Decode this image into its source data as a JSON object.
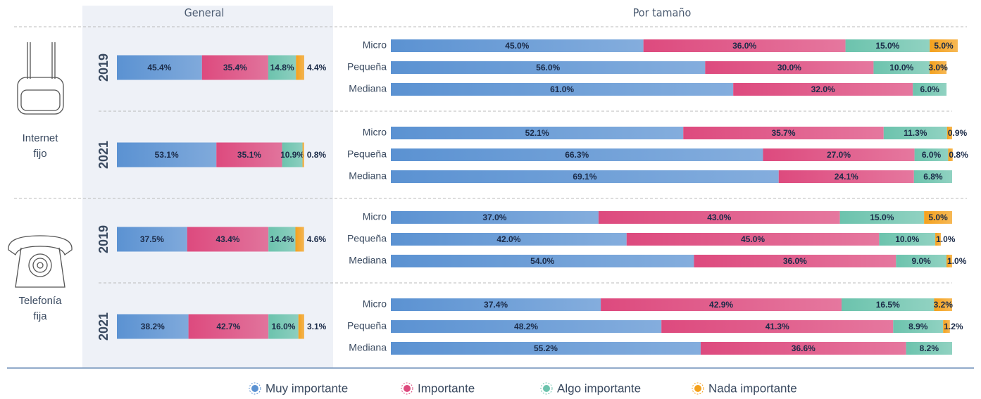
{
  "chart_data": {
    "type": "stacked_bar",
    "headers": [
      "General",
      "Por tamaño"
    ],
    "xlim": [
      0,
      100
    ],
    "series": [
      {
        "name": "Muy importante",
        "color": "#5b92d2"
      },
      {
        "name": "Importante",
        "color": "#dd4a7e"
      },
      {
        "name": "Algo importante",
        "color": "#6cc3ad"
      },
      {
        "name": "Nada importante",
        "color": "#f4a11d"
      }
    ],
    "sections": [
      {
        "label_lines": [
          "Internet",
          "fijo"
        ],
        "years": [
          {
            "year": "2019",
            "general": {
              "values": [
                45.4,
                35.4,
                14.8,
                4.4
              ],
              "value_labels": [
                "45.4%",
                "35.4%",
                "14.8%",
                "4.4%"
              ]
            },
            "sizes": [
              {
                "name": "Micro",
                "values": [
                  45,
                  36,
                  15,
                  5
                ],
                "value_labels": [
                  "45.0%",
                  "36.0%",
                  "15.0%",
                  "5.0%"
                ]
              },
              {
                "name": "Pequeña",
                "values": [
                  56,
                  30,
                  10,
                  3
                ],
                "value_labels": [
                  "56.0%",
                  "30.0%",
                  "10.0%",
                  "3.0%"
                ]
              },
              {
                "name": "Mediana",
                "values": [
                  61,
                  32,
                  6
                ],
                "value_labels": [
                  "61.0%",
                  "32.0%",
                  "6.0%"
                ]
              }
            ]
          },
          {
            "year": "2021",
            "general": {
              "values": [
                53.1,
                35.1,
                10.9,
                0.8
              ],
              "value_labels": [
                "53.1%",
                "35.1%",
                "10.9%",
                "0.8%"
              ]
            },
            "sizes": [
              {
                "name": "Micro",
                "values": [
                  52.1,
                  35.7,
                  11.3,
                  0.9
                ],
                "value_labels": [
                  "52.1%",
                  "35.7%",
                  "11.3%",
                  "0.9%"
                ]
              },
              {
                "name": "Pequeña",
                "values": [
                  66.3,
                  27.0,
                  6.0,
                  0.8
                ],
                "value_labels": [
                  "66.3%",
                  "27.0%",
                  "6.0%",
                  "0.8%"
                ]
              },
              {
                "name": "Mediana",
                "values": [
                  69.1,
                  24.1,
                  6.8
                ],
                "value_labels": [
                  "69.1%",
                  "24.1%",
                  "6.8%"
                ]
              }
            ]
          }
        ]
      },
      {
        "label_lines": [
          "Telefonía",
          "fija"
        ],
        "years": [
          {
            "year": "2019",
            "general": {
              "values": [
                37.5,
                43.4,
                14.4,
                4.6
              ],
              "value_labels": [
                "37.5%",
                "43.4%",
                "14.4%",
                "4.6%"
              ]
            },
            "sizes": [
              {
                "name": "Micro",
                "values": [
                  37,
                  43,
                  15,
                  5
                ],
                "value_labels": [
                  "37.0%",
                  "43.0%",
                  "15.0%",
                  "5.0%"
                ]
              },
              {
                "name": "Pequeña",
                "values": [
                  42,
                  45,
                  10,
                  1
                ],
                "value_labels": [
                  "42.0%",
                  "45.0%",
                  "10.0%",
                  "1.0%"
                ]
              },
              {
                "name": "Mediana",
                "values": [
                  54,
                  36,
                  9,
                  1
                ],
                "value_labels": [
                  "54.0%",
                  "36.0%",
                  "9.0%",
                  "1.0%"
                ]
              }
            ]
          },
          {
            "year": "2021",
            "general": {
              "values": [
                38.2,
                42.7,
                16.0,
                3.1
              ],
              "value_labels": [
                "38.2%",
                "42.7%",
                "16.0%",
                "3.1%"
              ]
            },
            "sizes": [
              {
                "name": "Micro",
                "values": [
                  37.4,
                  42.9,
                  16.5,
                  3.2
                ],
                "value_labels": [
                  "37.4%",
                  "42.9%",
                  "16.5%",
                  "3.2%"
                ]
              },
              {
                "name": "Pequeña",
                "values": [
                  48.2,
                  41.3,
                  8.9,
                  1.2
                ],
                "value_labels": [
                  "48.2%",
                  "41.3%",
                  "8.9%",
                  "1.2%"
                ]
              },
              {
                "name": "Mediana",
                "values": [
                  55.2,
                  36.6,
                  8.2
                ],
                "value_labels": [
                  "55.2%",
                  "36.6%",
                  "8.2%"
                ]
              }
            ]
          }
        ]
      }
    ]
  }
}
